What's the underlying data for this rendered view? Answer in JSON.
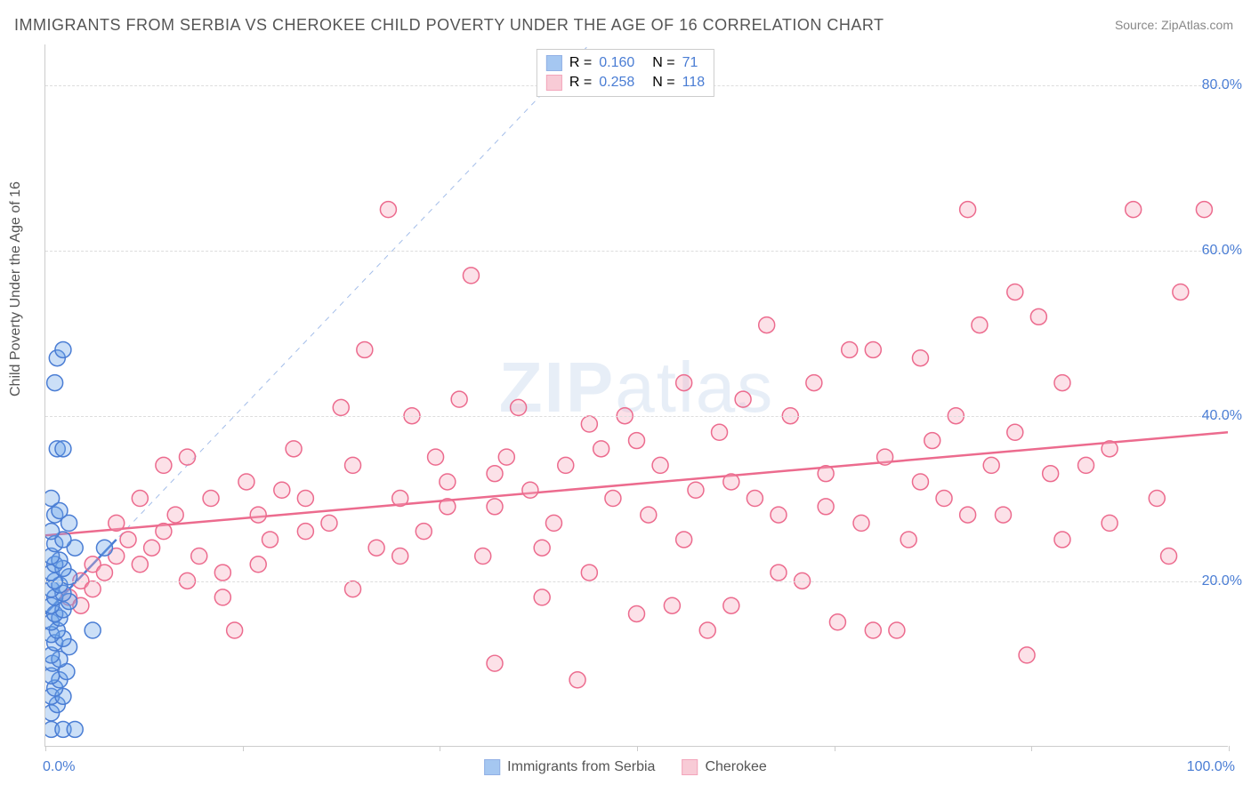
{
  "title": "IMMIGRANTS FROM SERBIA VS CHEROKEE CHILD POVERTY UNDER THE AGE OF 16 CORRELATION CHART",
  "source_label": "Source:",
  "source_value": "ZipAtlas.com",
  "watermark_a": "ZIP",
  "watermark_b": "atlas",
  "ylabel": "Child Poverty Under the Age of 16",
  "chart": {
    "type": "scatter",
    "xlim": [
      0,
      100
    ],
    "ylim": [
      0,
      85
    ],
    "yticks": [
      20,
      40,
      60,
      80
    ],
    "ytick_labels": [
      "20.0%",
      "40.0%",
      "60.0%",
      "80.0%"
    ],
    "xtick_positions": [
      0,
      16.67,
      33.33,
      50,
      66.67,
      83.33,
      100
    ],
    "xlabel_start": "0.0%",
    "xlabel_end": "100.0%",
    "grid_color": "#dddddd",
    "axis_color": "#cccccc",
    "background_color": "#ffffff",
    "marker_radius": 9,
    "marker_fill_opacity": 0.35,
    "marker_stroke_width": 1.5,
    "series": [
      {
        "name": "Immigrants from Serbia",
        "color": "#6aa3e8",
        "stroke": "#4a7dd4",
        "R": "0.160",
        "N": "71",
        "trend": {
          "x1": 0,
          "y1": 16,
          "x2": 6,
          "y2": 25,
          "dash_x1": 0,
          "dash_y1": 16,
          "dash_x2": 46,
          "dash_y2": 85
        },
        "points": [
          [
            0.5,
            2
          ],
          [
            1.5,
            2
          ],
          [
            2.5,
            2
          ],
          [
            0.5,
            4
          ],
          [
            1,
            5
          ],
          [
            0.5,
            6
          ],
          [
            1.5,
            6
          ],
          [
            0.8,
            7
          ],
          [
            1.2,
            8
          ],
          [
            0.5,
            8.5
          ],
          [
            1.8,
            9
          ],
          [
            0.6,
            10
          ],
          [
            1.2,
            10.5
          ],
          [
            0.5,
            11
          ],
          [
            2,
            12
          ],
          [
            0.8,
            12.5
          ],
          [
            1.5,
            13
          ],
          [
            0.5,
            13.5
          ],
          [
            1,
            14
          ],
          [
            4,
            14
          ],
          [
            0.5,
            15
          ],
          [
            1.2,
            15.5
          ],
          [
            0.8,
            16
          ],
          [
            1.5,
            16.5
          ],
          [
            0.5,
            17
          ],
          [
            2,
            17.5
          ],
          [
            0.8,
            18
          ],
          [
            1.5,
            18.5
          ],
          [
            0.5,
            19
          ],
          [
            1.2,
            19.5
          ],
          [
            0.8,
            20
          ],
          [
            2,
            20.5
          ],
          [
            0.5,
            21
          ],
          [
            1.5,
            21.5
          ],
          [
            0.8,
            22
          ],
          [
            1.2,
            22.5
          ],
          [
            0.5,
            23
          ],
          [
            2.5,
            24
          ],
          [
            5,
            24
          ],
          [
            0.8,
            24.5
          ],
          [
            1.5,
            25
          ],
          [
            0.5,
            26
          ],
          [
            2,
            27
          ],
          [
            0.8,
            28
          ],
          [
            1.2,
            28.5
          ],
          [
            0.5,
            30
          ],
          [
            1,
            36
          ],
          [
            1.5,
            36
          ],
          [
            0.8,
            44
          ],
          [
            1,
            47
          ],
          [
            1.5,
            48
          ]
        ]
      },
      {
        "name": "Cherokee",
        "color": "#f5a9bc",
        "stroke": "#ec6b8e",
        "R": "0.258",
        "N": "118",
        "trend": {
          "x1": 0,
          "y1": 25.5,
          "x2": 100,
          "y2": 38
        },
        "points": [
          [
            2,
            18
          ],
          [
            3,
            20
          ],
          [
            4,
            22
          ],
          [
            5,
            21
          ],
          [
            6,
            23
          ],
          [
            7,
            25
          ],
          [
            8,
            22
          ],
          [
            9,
            24
          ],
          [
            10,
            26
          ],
          [
            11,
            28
          ],
          [
            12,
            35
          ],
          [
            13,
            23
          ],
          [
            14,
            30
          ],
          [
            15,
            21
          ],
          [
            16,
            14
          ],
          [
            17,
            32
          ],
          [
            18,
            28
          ],
          [
            19,
            25
          ],
          [
            20,
            31
          ],
          [
            21,
            36
          ],
          [
            22,
            30
          ],
          [
            24,
            27
          ],
          [
            25,
            41
          ],
          [
            26,
            34
          ],
          [
            27,
            48
          ],
          [
            28,
            24
          ],
          [
            29,
            65
          ],
          [
            30,
            30
          ],
          [
            31,
            40
          ],
          [
            32,
            26
          ],
          [
            33,
            35
          ],
          [
            34,
            32
          ],
          [
            35,
            42
          ],
          [
            36,
            57
          ],
          [
            37,
            23
          ],
          [
            38,
            29
          ],
          [
            38,
            10
          ],
          [
            39,
            35
          ],
          [
            40,
            41
          ],
          [
            41,
            31
          ],
          [
            42,
            18
          ],
          [
            43,
            27
          ],
          [
            44,
            34
          ],
          [
            45,
            8
          ],
          [
            46,
            21
          ],
          [
            47,
            36
          ],
          [
            48,
            30
          ],
          [
            49,
            40
          ],
          [
            50,
            16
          ],
          [
            51,
            28
          ],
          [
            52,
            34
          ],
          [
            53,
            17
          ],
          [
            54,
            44
          ],
          [
            55,
            31
          ],
          [
            56,
            14
          ],
          [
            57,
            38
          ],
          [
            58,
            17
          ],
          [
            59,
            42
          ],
          [
            60,
            30
          ],
          [
            61,
            51
          ],
          [
            62,
            28
          ],
          [
            63,
            40
          ],
          [
            64,
            20
          ],
          [
            65,
            44
          ],
          [
            66,
            33
          ],
          [
            67,
            15
          ],
          [
            68,
            48
          ],
          [
            69,
            27
          ],
          [
            70,
            14
          ],
          [
            71,
            35
          ],
          [
            72,
            14
          ],
          [
            73,
            25
          ],
          [
            74,
            47
          ],
          [
            75,
            37
          ],
          [
            76,
            30
          ],
          [
            77,
            40
          ],
          [
            78,
            65
          ],
          [
            79,
            51
          ],
          [
            80,
            34
          ],
          [
            81,
            28
          ],
          [
            82,
            55
          ],
          [
            83,
            11
          ],
          [
            84,
            52
          ],
          [
            85,
            33
          ],
          [
            86,
            25
          ],
          [
            88,
            34
          ],
          [
            90,
            27
          ],
          [
            92,
            65
          ],
          [
            95,
            23
          ],
          [
            96,
            55
          ],
          [
            98,
            65
          ],
          [
            3,
            17
          ],
          [
            4,
            19
          ],
          [
            6,
            27
          ],
          [
            8,
            30
          ],
          [
            10,
            34
          ],
          [
            12,
            20
          ],
          [
            15,
            18
          ],
          [
            18,
            22
          ],
          [
            22,
            26
          ],
          [
            26,
            19
          ],
          [
            30,
            23
          ],
          [
            34,
            29
          ],
          [
            38,
            33
          ],
          [
            42,
            24
          ],
          [
            46,
            39
          ],
          [
            50,
            37
          ],
          [
            54,
            25
          ],
          [
            58,
            32
          ],
          [
            62,
            21
          ],
          [
            66,
            29
          ],
          [
            70,
            48
          ],
          [
            74,
            32
          ],
          [
            78,
            28
          ],
          [
            82,
            38
          ],
          [
            86,
            44
          ],
          [
            90,
            36
          ],
          [
            94,
            30
          ]
        ]
      }
    ]
  },
  "legend_top": {
    "r_label": "R =",
    "n_label": "N ="
  },
  "legend_bottom": {
    "series_a": "Immigrants from Serbia",
    "series_b": "Cherokee"
  }
}
